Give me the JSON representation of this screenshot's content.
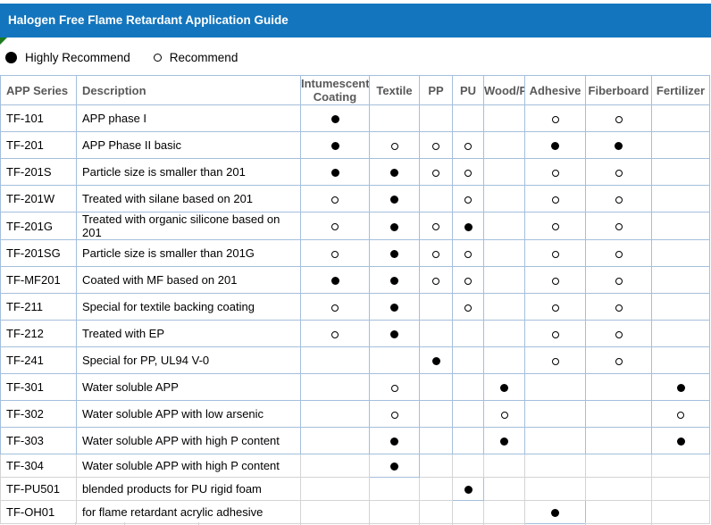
{
  "title": "Halogen Free Flame Retardant Application Guide",
  "legend": {
    "highly_recommend": "Highly Recommend",
    "recommend": "Recommend"
  },
  "colors": {
    "title_bar_bg": "#1375BD",
    "table_border_blue": "#A4BFDC",
    "sheet_gridline_gray": "#D4D4D4",
    "header_text": "#595959",
    "marker": "#000000",
    "flag_green": "#1E7A1E"
  },
  "table": {
    "columns": [
      "APP Series",
      "Description",
      "Intumescent Coating",
      "Textile",
      "PP",
      "PU",
      "Wood/Paper",
      "Adhesive",
      "Fiberboard",
      "Fertilizer"
    ],
    "marker_meaning": {
      "F": "Highly Recommend",
      "O": "Recommend"
    },
    "rows": [
      {
        "series": "TF-101",
        "description": "APP phase I",
        "marks": [
          "F",
          "",
          "",
          "",
          "",
          "O",
          "O",
          ""
        ]
      },
      {
        "series": "TF-201",
        "description": "APP Phase II basic",
        "marks": [
          "F",
          "O",
          "O",
          "O",
          "",
          "F",
          "F",
          ""
        ]
      },
      {
        "series": "TF-201S",
        "description": "Particle size is smaller than 201",
        "marks": [
          "F",
          "F",
          "O",
          "O",
          "",
          "O",
          "O",
          ""
        ]
      },
      {
        "series": "TF-201W",
        "description": "Treated with silane based on 201",
        "marks": [
          "O",
          "F",
          "",
          "O",
          "",
          "O",
          "O",
          ""
        ]
      },
      {
        "series": "TF-201G",
        "description": "Treated with organic silicone based on 201",
        "marks": [
          "O",
          "F",
          "O",
          "F",
          "",
          "O",
          "O",
          ""
        ]
      },
      {
        "series": "TF-201SG",
        "description": "Particle size is smaller than 201G",
        "marks": [
          "O",
          "F",
          "O",
          "O",
          "",
          "O",
          "O",
          ""
        ]
      },
      {
        "series": "TF-MF201",
        "description": "Coated with MF based on 201",
        "marks": [
          "F",
          "F",
          "O",
          "O",
          "",
          "O",
          "O",
          ""
        ]
      },
      {
        "series": "TF-211",
        "description": "Special for textile backing coating",
        "marks": [
          "O",
          "F",
          "",
          "O",
          "",
          "O",
          "O",
          ""
        ]
      },
      {
        "series": "TF-212",
        "description": "Treated with EP",
        "marks": [
          "O",
          "F",
          "",
          "",
          "",
          "O",
          "O",
          ""
        ]
      },
      {
        "series": "TF-241",
        "description": "Special for PP, UL94 V-0",
        "marks": [
          "",
          "",
          "F",
          "",
          "",
          "O",
          "O",
          ""
        ]
      },
      {
        "series": "TF-301",
        "description": "Water soluble APP",
        "marks": [
          "",
          "O",
          "",
          "",
          "F",
          "",
          "",
          "F"
        ]
      },
      {
        "series": "TF-302",
        "description": "Water soluble APP with low arsenic",
        "marks": [
          "",
          "O",
          "",
          "",
          "O",
          "",
          "",
          "O"
        ]
      },
      {
        "series": "TF-303",
        "description": "Water soluble APP with high P content",
        "marks": [
          "",
          "F",
          "",
          "",
          "F",
          "",
          "",
          "F"
        ]
      },
      {
        "series": "TF-304",
        "description": "Water soluble APP with high P content",
        "marks": [
          "",
          "F",
          "",
          "",
          "",
          "",
          "",
          ""
        ]
      },
      {
        "series": "TF-PU501",
        "description": "blended products for PU rigid foam",
        "marks": [
          "",
          "",
          "",
          "F",
          "",
          "",
          "",
          ""
        ]
      },
      {
        "series": "TF-OH01",
        "description": "for flame retardant acrylic adhesive",
        "marks": [
          "",
          "",
          "",
          "",
          "",
          "F",
          "",
          ""
        ]
      }
    ]
  }
}
